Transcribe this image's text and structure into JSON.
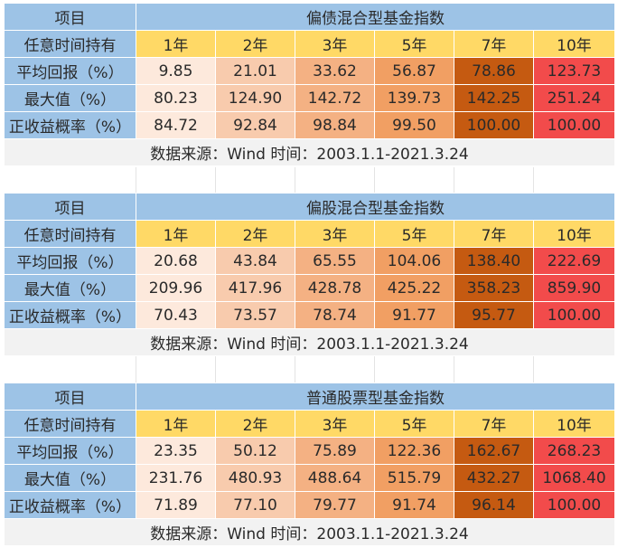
{
  "tables": [
    {
      "label_header": "项目",
      "title": "偏债混合型基金指数",
      "period_header": "任意时间持有",
      "years": [
        "1年",
        "2年",
        "3年",
        "5年",
        "7年",
        "10年"
      ],
      "rows": [
        {
          "label": "平均回报（%）",
          "values": [
            "9.85",
            "21.01",
            "33.62",
            "56.87",
            "78.86",
            "123.73"
          ]
        },
        {
          "label": "最大值（%）",
          "values": [
            "80.23",
            "124.90",
            "142.72",
            "139.73",
            "142.25",
            "251.24"
          ]
        },
        {
          "label": "正收益概率（%）",
          "values": [
            "84.72",
            "92.84",
            "98.84",
            "99.50",
            "100.00",
            "100.00"
          ]
        }
      ],
      "source": "数据来源：Wind 时间：2003.1.1-2021.3.24"
    },
    {
      "label_header": "项目",
      "title": "偏股混合型基金指数",
      "period_header": "任意时间持有",
      "years": [
        "1年",
        "2年",
        "3年",
        "5年",
        "7年",
        "10年"
      ],
      "rows": [
        {
          "label": "平均回报（%）",
          "values": [
            "20.68",
            "43.84",
            "65.55",
            "104.06",
            "138.40",
            "222.69"
          ]
        },
        {
          "label": "最大值（%）",
          "values": [
            "209.96",
            "417.96",
            "428.78",
            "425.22",
            "358.23",
            "859.90"
          ]
        },
        {
          "label": "正收益概率（%）",
          "values": [
            "70.43",
            "73.57",
            "78.74",
            "91.77",
            "95.77",
            "100.00"
          ]
        }
      ],
      "source": "数据来源：Wind 时间：2003.1.1-2021.3.24"
    },
    {
      "label_header": "项目",
      "title": "普通股票型基金指数",
      "period_header": "任意时间持有",
      "years": [
        "1年",
        "2年",
        "3年",
        "5年",
        "7年",
        "10年"
      ],
      "rows": [
        {
          "label": "平均回报（%）",
          "values": [
            "23.35",
            "50.12",
            "75.89",
            "122.36",
            "162.67",
            "268.23"
          ]
        },
        {
          "label": "最大值（%）",
          "values": [
            "231.76",
            "480.93",
            "488.64",
            "515.79",
            "432.27",
            "1068.40"
          ]
        },
        {
          "label": "正收益概率（%）",
          "values": [
            "71.89",
            "77.10",
            "79.77",
            "91.74",
            "96.14",
            "100.00"
          ]
        }
      ],
      "source": "数据来源：Wind 时间：2003.1.1-2021.3.24"
    }
  ],
  "colors": {
    "header_blue": "#9dc3e6",
    "year_yellow": "#ffd966",
    "col_1": "#fde9dc",
    "col_2": "#f8cbad",
    "col_3": "#f4b183",
    "col_4": "#f19f63",
    "col_5": "#c55a11",
    "col_6": "#f24b4b",
    "source_gray": "#f2f2f2"
  }
}
